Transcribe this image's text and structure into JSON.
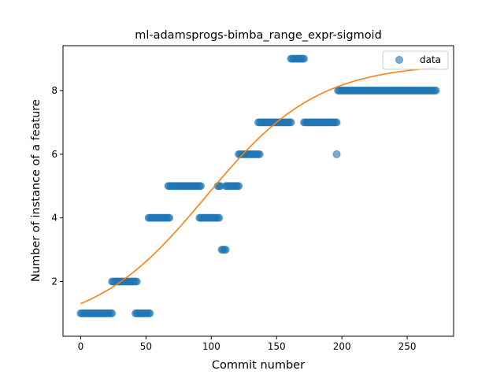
{
  "chart_data": {
    "type": "scatter",
    "title": "ml-adamsprogs-bimba_range_expr-sigmoid",
    "xlabel": "Commit number",
    "ylabel": "Number of instance of a feature",
    "xlim": [
      -13.5,
      285.5
    ],
    "ylim": [
      0.28,
      9.41
    ],
    "xticks": [
      0,
      50,
      100,
      150,
      200,
      250
    ],
    "yticks": [
      2,
      4,
      6,
      8
    ],
    "grid": false,
    "legend": {
      "position": "top-right",
      "entries": [
        "data"
      ]
    },
    "series": [
      {
        "name": "data",
        "kind": "scatter",
        "color": "#1f77b4",
        "opacity": 0.6,
        "segments": [
          {
            "x_start": 0,
            "x_end": 24,
            "y": 1
          },
          {
            "x_start": 24,
            "x_end": 43,
            "y": 2
          },
          {
            "x_start": 42,
            "x_end": 53,
            "y": 1
          },
          {
            "x_start": 52,
            "x_end": 68,
            "y": 4
          },
          {
            "x_start": 67,
            "x_end": 92,
            "y": 5
          },
          {
            "x_start": 91,
            "x_end": 106,
            "y": 4
          },
          {
            "x_start": 105,
            "x_end": 107,
            "y": 5
          },
          {
            "x_start": 108,
            "x_end": 111,
            "y": 3
          },
          {
            "x_start": 111,
            "x_end": 121,
            "y": 5
          },
          {
            "x_start": 121,
            "x_end": 137,
            "y": 6
          },
          {
            "x_start": 136,
            "x_end": 161,
            "y": 7
          },
          {
            "x_start": 161,
            "x_end": 171,
            "y": 9
          },
          {
            "x_start": 171,
            "x_end": 196,
            "y": 7
          },
          {
            "x_start": 196,
            "x_end": 196,
            "y": 6
          },
          {
            "x_start": 197,
            "x_end": 272,
            "y": 8
          }
        ]
      },
      {
        "name": "",
        "kind": "line",
        "color": "#ff7f0e",
        "curve": {
          "form": "sigmoid",
          "L": 8.35,
          "k": 0.0233,
          "x0": 96,
          "b": 0.5,
          "x_range": [
            0,
            272
          ]
        }
      }
    ]
  }
}
